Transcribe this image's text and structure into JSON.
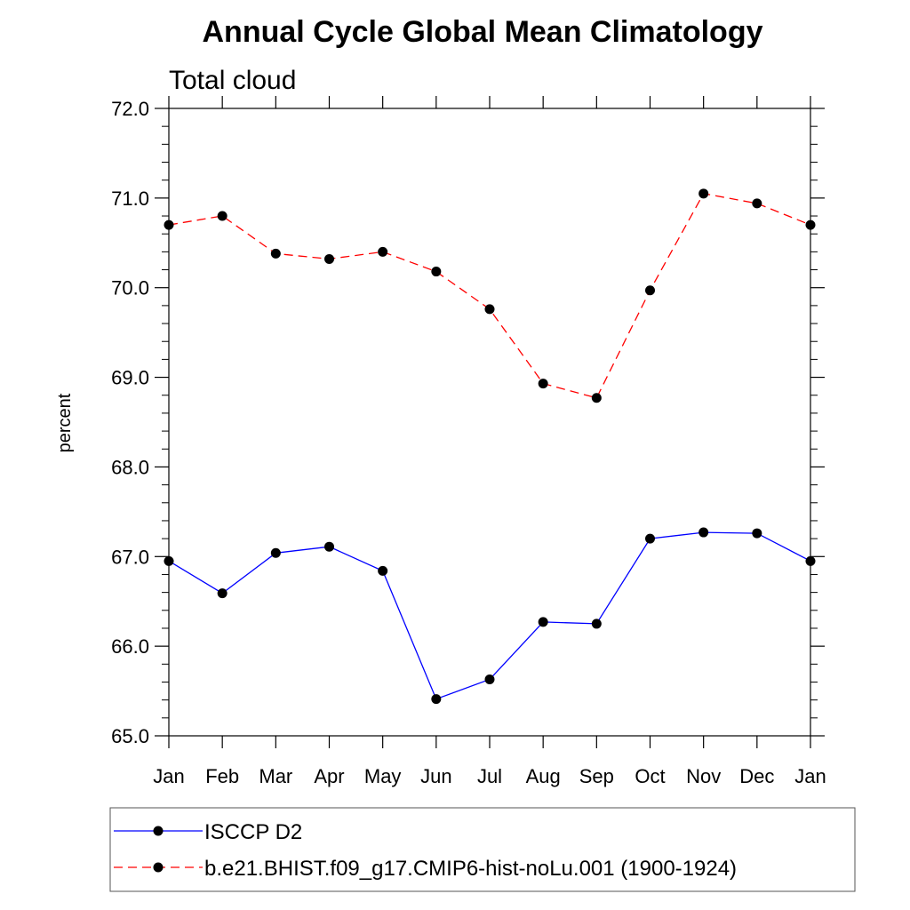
{
  "chart_data": {
    "type": "line",
    "title": "Annual Cycle Global Mean Climatology",
    "subtitle": "Total cloud",
    "xlabel": "",
    "ylabel": "percent",
    "categories": [
      "Jan",
      "Feb",
      "Mar",
      "Apr",
      "May",
      "Jun",
      "Jul",
      "Aug",
      "Sep",
      "Oct",
      "Nov",
      "Dec",
      "Jan"
    ],
    "ylim": [
      65.0,
      72.0
    ],
    "yticks": [
      "65.0",
      "66.0",
      "67.0",
      "68.0",
      "69.0",
      "70.0",
      "71.0",
      "72.0"
    ],
    "grid": false,
    "legend_position": "bottom",
    "series": [
      {
        "name": "ISCCP D2",
        "color": "#0000ff",
        "style": "solid",
        "marker": "circle",
        "values": [
          66.95,
          66.59,
          67.04,
          67.11,
          66.84,
          65.41,
          65.63,
          66.27,
          66.25,
          67.2,
          67.27,
          67.26,
          66.95
        ]
      },
      {
        "name": "b.e21.BHIST.f09_g17.CMIP6-hist-noLu.001 (1900-1924)",
        "color": "#ff0000",
        "style": "dashed",
        "marker": "circle",
        "values": [
          70.7,
          70.8,
          70.38,
          70.32,
          70.4,
          70.18,
          69.76,
          68.93,
          68.77,
          69.97,
          71.05,
          70.94,
          70.7
        ]
      }
    ]
  }
}
